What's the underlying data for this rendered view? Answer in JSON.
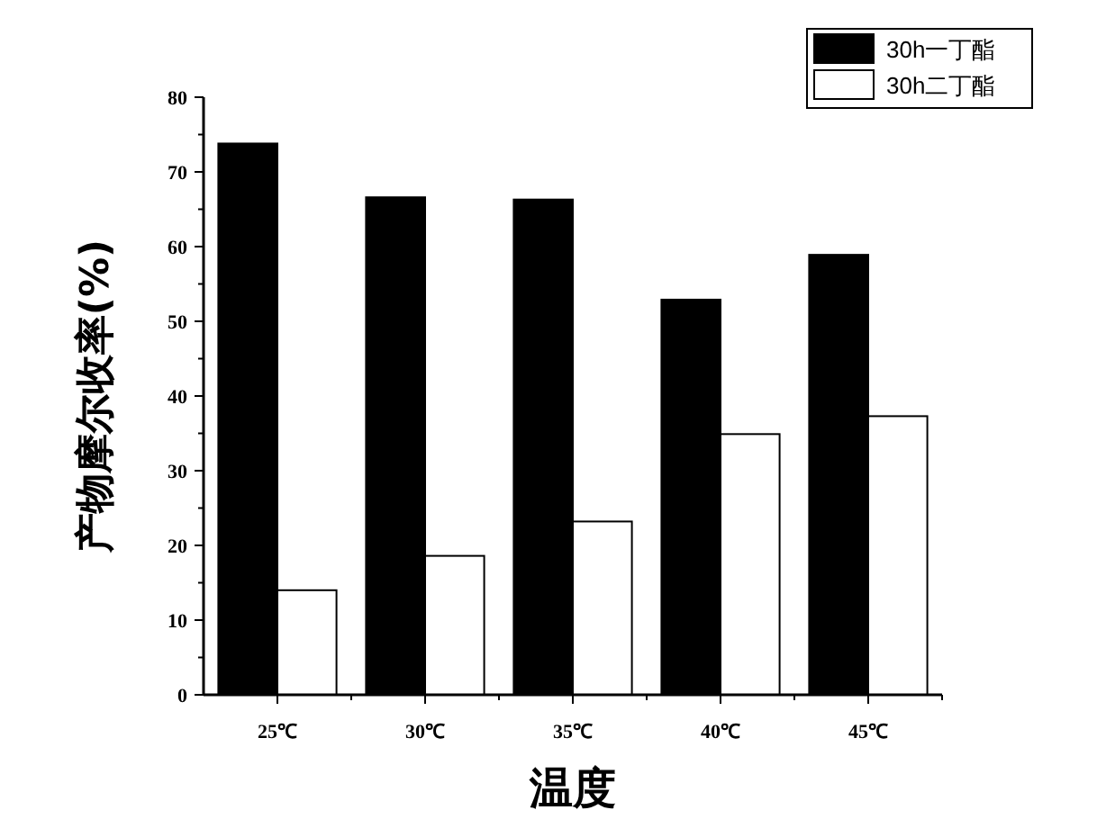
{
  "chart_data": {
    "type": "bar",
    "xlabel": "温度",
    "ylabel": "产物摩尔收率(%)",
    "categories": [
      "25℃",
      "30℃",
      "35℃",
      "40℃",
      "45℃"
    ],
    "series": [
      {
        "name": "30h一丁酯",
        "color": "#000000",
        "values": [
          73.8,
          66.6,
          66.3,
          52.9,
          58.9
        ]
      },
      {
        "name": "30h二丁酯",
        "color": "#ffffff",
        "values": [
          14.0,
          18.6,
          23.2,
          34.9,
          37.3
        ]
      }
    ],
    "ylim": [
      0,
      80
    ],
    "yticks": [
      0,
      10,
      20,
      30,
      40,
      50,
      60,
      70,
      80
    ],
    "grid": false,
    "legend": "top right"
  }
}
